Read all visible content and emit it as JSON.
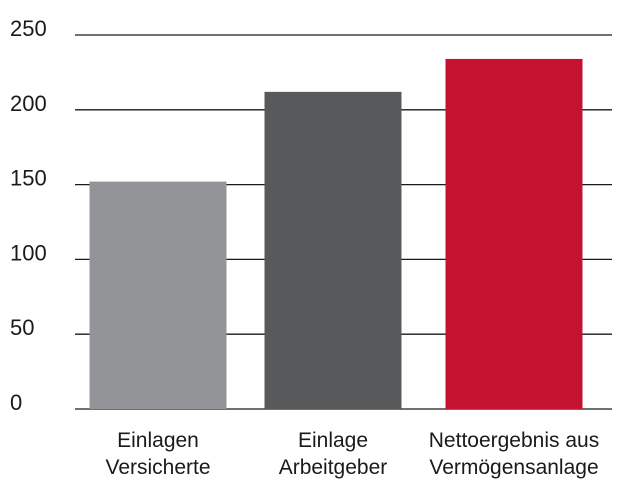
{
  "chart_data": {
    "type": "bar",
    "title": "",
    "xlabel": "",
    "ylabel": "",
    "ylim": [
      0,
      250
    ],
    "yticks": [
      0,
      50,
      100,
      150,
      200,
      250
    ],
    "grid": true,
    "categories": [
      [
        "Einlagen",
        "Versicherte"
      ],
      [
        "Einlage",
        "Arbeitgeber"
      ],
      [
        "Nettoergebnis aus",
        "Vermögensanlage"
      ]
    ],
    "values": [
      152,
      212,
      234
    ],
    "colors": [
      "#939497",
      "#58595b",
      "#c41230"
    ]
  }
}
